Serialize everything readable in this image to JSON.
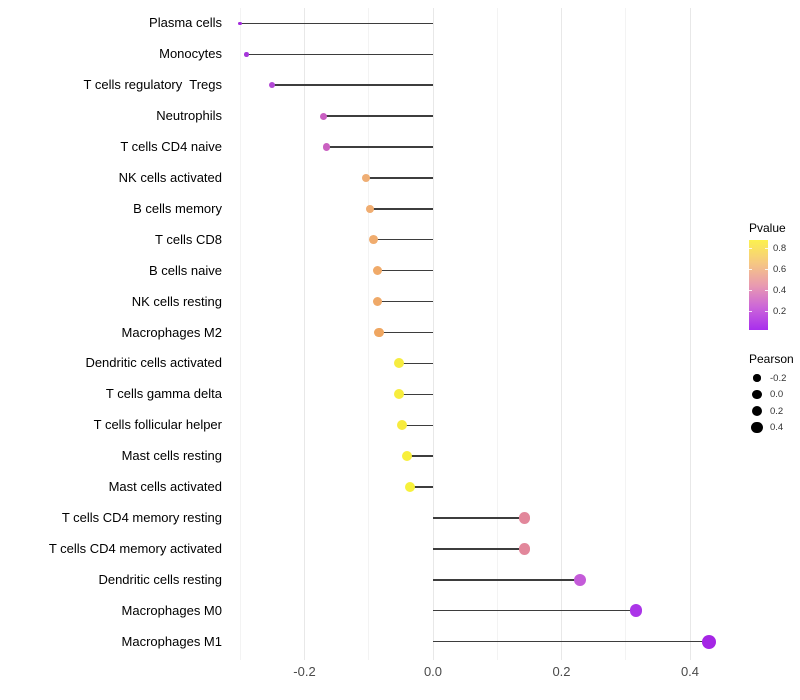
{
  "chart_data": {
    "type": "scatter",
    "subtype": "horizontal-lollipop",
    "title": "",
    "xlabel": "",
    "ylabel": "",
    "xlim": [
      -0.316,
      0.455
    ],
    "grid": "on",
    "x_ticks": [
      {
        "value": -0.2,
        "label": "-0.2"
      },
      {
        "value": 0.0,
        "label": "0.0"
      },
      {
        "value": 0.2,
        "label": "0.2"
      },
      {
        "value": 0.4,
        "label": "0.4"
      }
    ],
    "x_gridlines": [
      {
        "value": -0.3,
        "major": false
      },
      {
        "value": -0.2,
        "major": true
      },
      {
        "value": -0.1,
        "major": false
      },
      {
        "value": 0.0,
        "major": true
      },
      {
        "value": 0.1,
        "major": false
      },
      {
        "value": 0.2,
        "major": true
      },
      {
        "value": 0.3,
        "major": false
      },
      {
        "value": 0.4,
        "major": true
      }
    ],
    "points": [
      {
        "label": "Plasma cells",
        "pearson": -0.3,
        "pvalue_est": 0.07,
        "color": "#A32CDC",
        "size": 3.6
      },
      {
        "label": "Monocytes",
        "pearson": -0.29,
        "pvalue_est": 0.09,
        "color": "#A637DA",
        "size": 4.6
      },
      {
        "label": "T cells regulatory  Tregs",
        "pearson": -0.25,
        "pvalue_est": 0.16,
        "color": "#B248D5",
        "size": 6.0
      },
      {
        "label": "Neutrophils",
        "pearson": -0.17,
        "pvalue_est": 0.31,
        "color": "#C95FC2",
        "size": 7.0
      },
      {
        "label": "T cells CD4 naive",
        "pearson": -0.166,
        "pvalue_est": 0.31,
        "color": "#CA61C1",
        "size": 7.2
      },
      {
        "label": "NK cells activated",
        "pearson": -0.104,
        "pvalue_est": 0.55,
        "color": "#EFAE74",
        "size": 8.4
      },
      {
        "label": "B cells memory",
        "pearson": -0.098,
        "pvalue_est": 0.55,
        "color": "#F0AD71",
        "size": 8.6
      },
      {
        "label": "T cells CD8",
        "pearson": -0.093,
        "pvalue_est": 0.56,
        "color": "#F0AC6E",
        "size": 8.9
      },
      {
        "label": "B cells naive",
        "pearson": -0.087,
        "pvalue_est": 0.57,
        "color": "#F0AA69",
        "size": 9.2
      },
      {
        "label": "NK cells resting",
        "pearson": -0.087,
        "pvalue_est": 0.57,
        "color": "#EFA968",
        "size": 9.2
      },
      {
        "label": "Macrophages M2",
        "pearson": -0.084,
        "pvalue_est": 0.59,
        "color": "#EFA661",
        "size": 9.5
      },
      {
        "label": "Dendritic cells activated",
        "pearson": -0.053,
        "pvalue_est": 0.78,
        "color": "#F6EC40",
        "size": 9.9
      },
      {
        "label": "T cells gamma delta",
        "pearson": -0.053,
        "pvalue_est": 0.78,
        "color": "#F7ED3E",
        "size": 10.0
      },
      {
        "label": "T cells follicular helper",
        "pearson": -0.048,
        "pvalue_est": 0.79,
        "color": "#F7EB3E",
        "size": 10.1
      },
      {
        "label": "Mast cells resting",
        "pearson": -0.04,
        "pvalue_est": 0.81,
        "color": "#F8EF3B",
        "size": 10.3
      },
      {
        "label": "Mast cells activated",
        "pearson": -0.036,
        "pvalue_est": 0.83,
        "color": "#F7F13B",
        "size": 10.5
      },
      {
        "label": "T cells CD4 memory resting",
        "pearson": 0.143,
        "pvalue_est": 0.42,
        "color": "#E2879B",
        "size": 11.2
      },
      {
        "label": "T cells CD4 memory activated",
        "pearson": 0.143,
        "pvalue_est": 0.42,
        "color": "#E2879B",
        "size": 11.2
      },
      {
        "label": "Dendritic cells resting",
        "pearson": 0.229,
        "pvalue_est": 0.24,
        "color": "#C45BD9",
        "size": 12.0
      },
      {
        "label": "Macrophages M0",
        "pearson": 0.316,
        "pvalue_est": 0.1,
        "color": "#AB35E8",
        "size": 12.8
      },
      {
        "label": "Macrophages M1",
        "pearson": 0.43,
        "pvalue_est": 0.02,
        "color": "#A526E5",
        "size": 14.0
      }
    ],
    "legend_position": "right"
  },
  "legend": {
    "pvalue": {
      "title": "Pvalue",
      "gradient_stops": [
        "#FCF14F",
        "#F6C981",
        "#E99BAF",
        "#CB65D9",
        "#A82EED"
      ],
      "domain_top": 0.88,
      "domain_bottom": 0.02,
      "ticks": [
        {
          "value": 0.8,
          "label": "0.8"
        },
        {
          "value": 0.6,
          "label": "0.6"
        },
        {
          "value": 0.4,
          "label": "0.4"
        },
        {
          "value": 0.2,
          "label": "0.2"
        }
      ]
    },
    "pearson": {
      "title": "Pearson",
      "items": [
        {
          "label": "-0.2",
          "diameter": 7.3
        },
        {
          "label": "0.0",
          "diameter": 9.3
        },
        {
          "label": "0.2",
          "diameter": 10.3
        },
        {
          "label": "0.4",
          "diameter": 11.3
        }
      ]
    }
  },
  "style": {
    "stem_color": "#3d3d3d",
    "grid_major_color": "#e8e8e8",
    "grid_minor_color": "#f3f3f3",
    "axis_text_color": "#4a4a4a",
    "label_color": "#000000",
    "background": "#ffffff"
  }
}
